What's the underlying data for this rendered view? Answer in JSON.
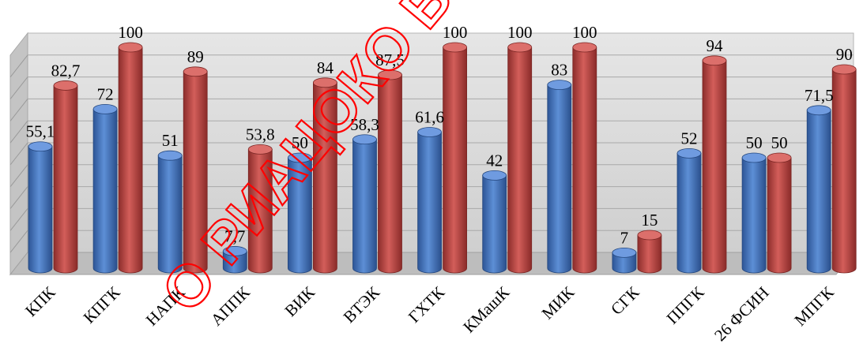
{
  "chart_data": {
    "type": "bar",
    "title": "",
    "xlabel": "",
    "ylabel": "",
    "ylim": [
      0,
      100
    ],
    "grid": true,
    "legend": "none",
    "style": "3d-cylinder",
    "categories": [
      "КПК",
      "КПГК",
      "НАПК",
      "АППК",
      "ВИК",
      "ВТЭК",
      "ГХТК",
      "КМашК",
      "МИК",
      "СГК",
      "ППГК",
      "26 ФСИН",
      "МПГК"
    ],
    "series": [
      {
        "color": "#4a7bc4",
        "values": [
          55.1,
          72,
          51,
          7.7,
          50,
          58.3,
          61.6,
          42,
          83,
          7,
          52,
          50,
          71.5
        ],
        "labels": [
          "55,1",
          "72",
          "51",
          "7,7",
          "50",
          "58,3",
          "61,6",
          "42",
          "83",
          "7",
          "52",
          "50",
          "71,5"
        ]
      },
      {
        "color": "#c0504d",
        "values": [
          82.7,
          100,
          89,
          53.8,
          84,
          87.5,
          100,
          100,
          100,
          15,
          94,
          50,
          90
        ],
        "labels": [
          "82,7",
          "100",
          "89",
          "53,8",
          "84",
          "87,5",
          "100",
          "100",
          "100",
          "15",
          "94",
          "50",
          "90"
        ]
      }
    ]
  },
  "watermark": {
    "text": "О РИАЦОКО ВСЕ ПРАВА",
    "color": "#ff0000"
  }
}
